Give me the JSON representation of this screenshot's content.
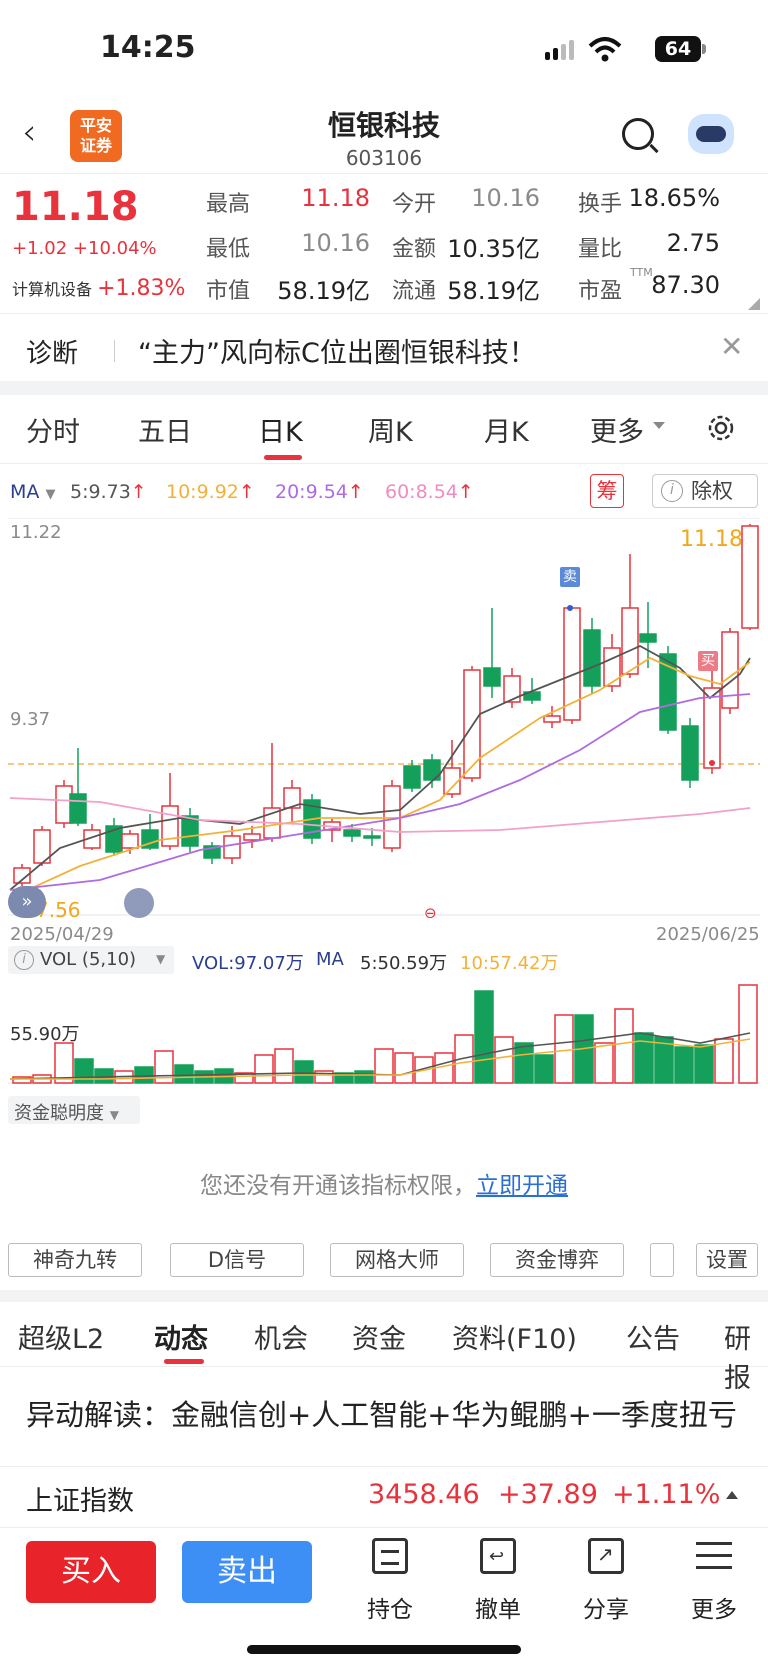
{
  "status_bar": {
    "time": "14:25",
    "battery": "64"
  },
  "header": {
    "logo_line1": "平安",
    "logo_line2": "证券",
    "title": "恒银科技",
    "code": "603106"
  },
  "quote": {
    "price": "11.18",
    "change": "+1.02",
    "change_pct": "+10.04%",
    "sector_name": "计算机设备",
    "sector_pct": "+1.83%",
    "rows": [
      [
        {
          "l": "最高",
          "v": "11.18",
          "c": "red"
        },
        {
          "l": "今开",
          "v": "10.16",
          "c": "gray"
        },
        {
          "l": "换手",
          "v": "18.65%",
          "c": "dark"
        }
      ],
      [
        {
          "l": "最低",
          "v": "10.16",
          "c": "gray"
        },
        {
          "l": "金额",
          "v": "10.35亿",
          "c": "dark"
        },
        {
          "l": "量比",
          "v": "2.75",
          "c": "dark"
        }
      ],
      [
        {
          "l": "市值",
          "v": "58.19亿",
          "c": "dark"
        },
        {
          "l": "流通",
          "v": "58.19亿",
          "c": "dark"
        },
        {
          "l": "市盈",
          "v": "87.30",
          "c": "dark"
        }
      ]
    ],
    "pe_sup": "TTM"
  },
  "diagnosis": {
    "label": "诊断",
    "text": "“主力”风向标C位出圈恒银科技！"
  },
  "chart_tabs": {
    "items": [
      "分时",
      "五日",
      "日K",
      "周K",
      "月K",
      "更多"
    ],
    "active": "日K"
  },
  "ma_legend": {
    "ma": "MA",
    "ma5": "5:9.73",
    "ma10": "10:9.92",
    "ma20": "20:9.54",
    "ma60": "60:8.54",
    "chou": "筹",
    "chuquan": "除权"
  },
  "kline": {
    "y_top": "11.22",
    "y_mid": "9.37",
    "last_label": "11.18",
    "low_label": "7.56",
    "date_start": "2025/04/29",
    "date_end": "2025/06/25",
    "sell_tag": "卖",
    "buy_tag": "买",
    "colors": {
      "up": "#e8323c",
      "down": "#14a05a",
      "ma5": "#555555",
      "ma10": "#f2b23a",
      "ma20": "#b06be0",
      "ma60": "#f2a0c8"
    }
  },
  "vol_legend": {
    "name": "VOL (5,10)",
    "vol": "VOL:97.07万",
    "ma": "MA",
    "ma5": "5:50.59万",
    "ma10": "10:57.42万",
    "y_label": "55.90万"
  },
  "fund": {
    "name": "资金聪明度",
    "notice": "您还没有开通该指标权限，",
    "link": "立即开通"
  },
  "tools": [
    "神奇九转",
    "D信号",
    "网格大师",
    "资金博弈",
    "设置"
  ],
  "info_tabs": {
    "items": [
      "超级L2",
      "动态",
      "机会",
      "资金",
      "资料(F10)",
      "公告",
      "研报"
    ],
    "active": "动态"
  },
  "news": "异动解读：金融信创+人工智能+华为鲲鹏+一季度扭亏",
  "index": {
    "name": "上证指数",
    "value": "3458.46",
    "change": "+37.89",
    "pct": "+1.11%"
  },
  "bottom": {
    "buy": "买入",
    "sell": "卖出",
    "items": [
      "持仓",
      "撤单",
      "分享",
      "更多"
    ]
  }
}
